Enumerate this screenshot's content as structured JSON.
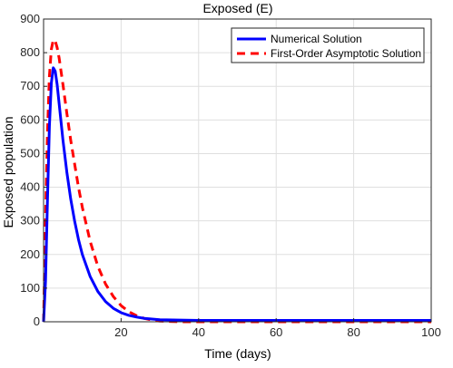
{
  "chart_data": {
    "type": "line",
    "title": "Exposed (E)",
    "xlabel": "Time (days)",
    "ylabel": "Exposed population",
    "xlim": [
      0,
      100
    ],
    "ylim": [
      0,
      900
    ],
    "xticks": [
      20,
      40,
      60,
      80,
      100
    ],
    "yticks": [
      0,
      100,
      200,
      300,
      400,
      500,
      600,
      700,
      800,
      900
    ],
    "grid": true,
    "legend_position": "top-right",
    "series": [
      {
        "name": "Numerical Solution",
        "color": "#0000ff",
        "style": "solid",
        "x": [
          0,
          0.5,
          1,
          1.5,
          2,
          2.5,
          3,
          3.5,
          4,
          5,
          6,
          7,
          8,
          9,
          10,
          12,
          14,
          16,
          18,
          20,
          22,
          24,
          26,
          28,
          30,
          35,
          40,
          50,
          60,
          70,
          80,
          90,
          100
        ],
        "y": [
          0,
          120,
          360,
          580,
          710,
          755,
          745,
          705,
          650,
          540,
          445,
          365,
          300,
          245,
          200,
          135,
          90,
          60,
          40,
          27,
          19,
          14,
          10,
          8,
          6,
          5,
          4,
          4,
          4,
          4,
          4,
          4,
          4
        ]
      },
      {
        "name": "First-Order Asymptotic Solution",
        "color": "#ff0000",
        "style": "dashed",
        "x": [
          0,
          0.5,
          1,
          1.5,
          2,
          2.5,
          3,
          3.5,
          4,
          5,
          6,
          7,
          8,
          9,
          10,
          12,
          14,
          16,
          18,
          20,
          22,
          24,
          26,
          28,
          30,
          35,
          40,
          50,
          60,
          70,
          80,
          90,
          100
        ],
        "y": [
          0,
          300,
          560,
          730,
          810,
          838,
          835,
          815,
          785,
          705,
          620,
          540,
          470,
          400,
          340,
          240,
          165,
          112,
          75,
          48,
          30,
          18,
          10,
          5,
          2,
          0,
          0,
          0,
          0,
          0,
          0,
          0,
          0
        ]
      }
    ]
  }
}
